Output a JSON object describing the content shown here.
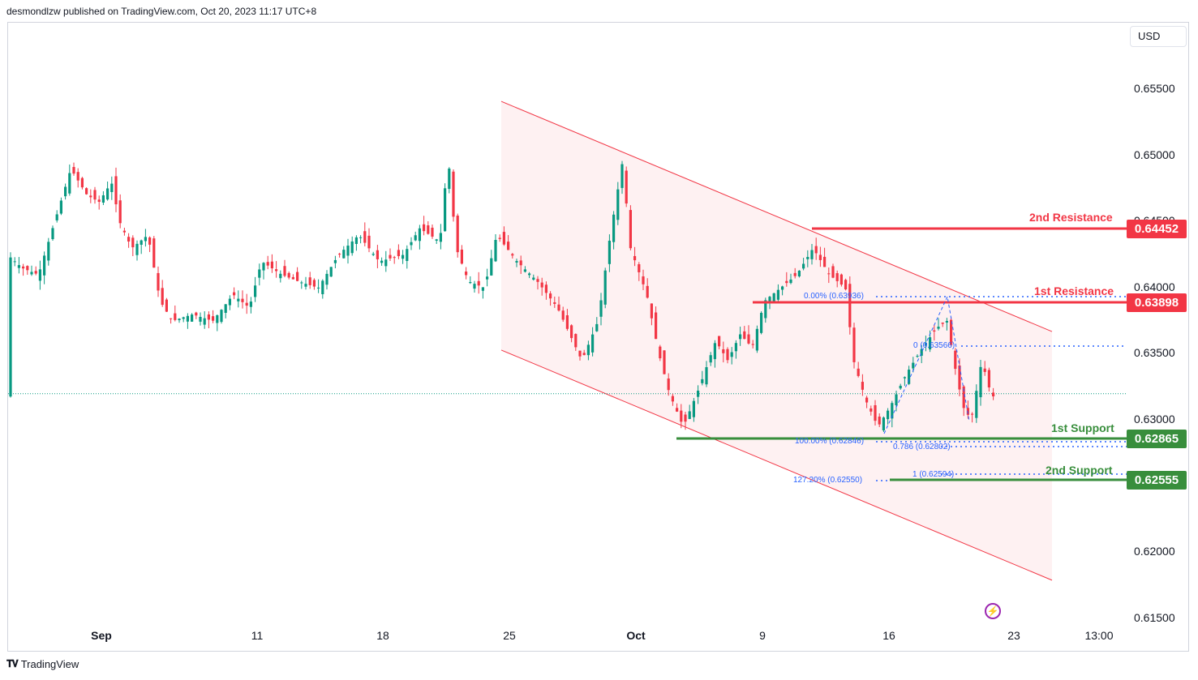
{
  "publisher": "desmondlzw published on TradingView.com, Oct 20, 2023 11:17 UTC+8",
  "currency": "USD",
  "brand": "TradingView",
  "price_axis": [
    "0.65500",
    "0.65000",
    "0.64500",
    "0.64000",
    "0.63500",
    "0.63000",
    "0.62500",
    "0.62000",
    "0.61500"
  ],
  "time_axis": [
    {
      "label": "Sep",
      "bold": true
    },
    {
      "label": "11",
      "bold": false
    },
    {
      "label": "18",
      "bold": false
    },
    {
      "label": "25",
      "bold": false
    },
    {
      "label": "Oct",
      "bold": true
    },
    {
      "label": "9",
      "bold": false
    },
    {
      "label": "16",
      "bold": false
    },
    {
      "label": "23",
      "bold": false
    },
    {
      "label": "13:00",
      "bold": false
    }
  ],
  "levels": {
    "resistance2": {
      "name": "2nd Resistance",
      "value": "0.64452",
      "color": "#f23645"
    },
    "resistance1": {
      "name": "1st Resistance",
      "value": "0.63898",
      "color": "#f23645"
    },
    "support1": {
      "name": "1st Support",
      "value": "0.62865",
      "color": "#388e3c"
    },
    "support2": {
      "name": "2nd Support",
      "value": "0.62555",
      "color": "#388e3c"
    }
  },
  "fib": {
    "f0": "0.00% (0.63936)",
    "f100": "100.00% (0.62846)",
    "f127": "127.20% (0.62550)",
    "t0": "0 (0.63566)",
    "t786": "0.786 (0.62802)",
    "t1": "1 (0.62594)"
  },
  "colors": {
    "up": "#089981",
    "down": "#f23645",
    "channel": "#f23645",
    "fib": "#2962ff"
  },
  "chart_data": {
    "type": "candlestick",
    "ylim": [
      0.615,
      0.657
    ],
    "channel": {
      "upper": [
        0.6541,
        0.6367
      ],
      "lower": [
        0.6353,
        0.6179
      ]
    },
    "last_price": 0.632
  }
}
